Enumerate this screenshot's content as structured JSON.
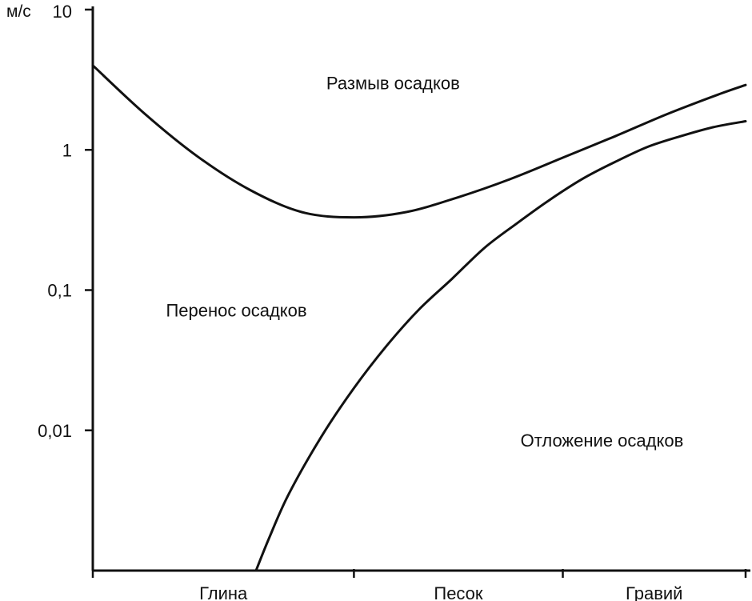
{
  "chart_data": {
    "type": "line",
    "title": "",
    "xlabel": "",
    "ylabel": "м/с",
    "y_scale": "log",
    "ylim": [
      0.001,
      10
    ],
    "xlim": [
      0,
      1
    ],
    "y_ticks": [
      {
        "value": 10,
        "label": "10"
      },
      {
        "value": 1,
        "label": "1"
      },
      {
        "value": 0.1,
        "label": "0,1"
      },
      {
        "value": 0.01,
        "label": "0,01"
      }
    ],
    "x_ticks": [
      0,
      0.4,
      0.72,
      1
    ],
    "categories": [
      {
        "label": "Глина",
        "x": 0.2
      },
      {
        "label": "Песок",
        "x": 0.56
      },
      {
        "label": "Гравий",
        "x": 0.86
      }
    ],
    "grid": false,
    "series": [
      {
        "color": "#111111",
        "points": [
          [
            0.0,
            4.0
          ],
          [
            0.08,
            1.8
          ],
          [
            0.16,
            0.9
          ],
          [
            0.24,
            0.52
          ],
          [
            0.32,
            0.36
          ],
          [
            0.4,
            0.33
          ],
          [
            0.48,
            0.36
          ],
          [
            0.56,
            0.46
          ],
          [
            0.64,
            0.62
          ],
          [
            0.72,
            0.88
          ],
          [
            0.8,
            1.25
          ],
          [
            0.88,
            1.8
          ],
          [
            0.96,
            2.5
          ],
          [
            1.0,
            2.9
          ]
        ]
      },
      {
        "color": "#111111",
        "points": [
          [
            0.25,
            0.001
          ],
          [
            0.27,
            0.0017
          ],
          [
            0.3,
            0.0035
          ],
          [
            0.35,
            0.009
          ],
          [
            0.4,
            0.02
          ],
          [
            0.45,
            0.04
          ],
          [
            0.5,
            0.073
          ],
          [
            0.55,
            0.12
          ],
          [
            0.6,
            0.2
          ],
          [
            0.65,
            0.3
          ],
          [
            0.7,
            0.44
          ],
          [
            0.75,
            0.62
          ],
          [
            0.8,
            0.82
          ],
          [
            0.85,
            1.05
          ],
          [
            0.9,
            1.25
          ],
          [
            0.95,
            1.45
          ],
          [
            1.0,
            1.6
          ]
        ]
      }
    ],
    "annotations": [
      {
        "text": "Размыв осадков",
        "x": 0.46,
        "y": 3.0
      },
      {
        "text": "Перенос осадков",
        "x": 0.22,
        "y": 0.072
      },
      {
        "text": "Отложение осадков",
        "x": 0.78,
        "y": 0.0085
      }
    ]
  }
}
